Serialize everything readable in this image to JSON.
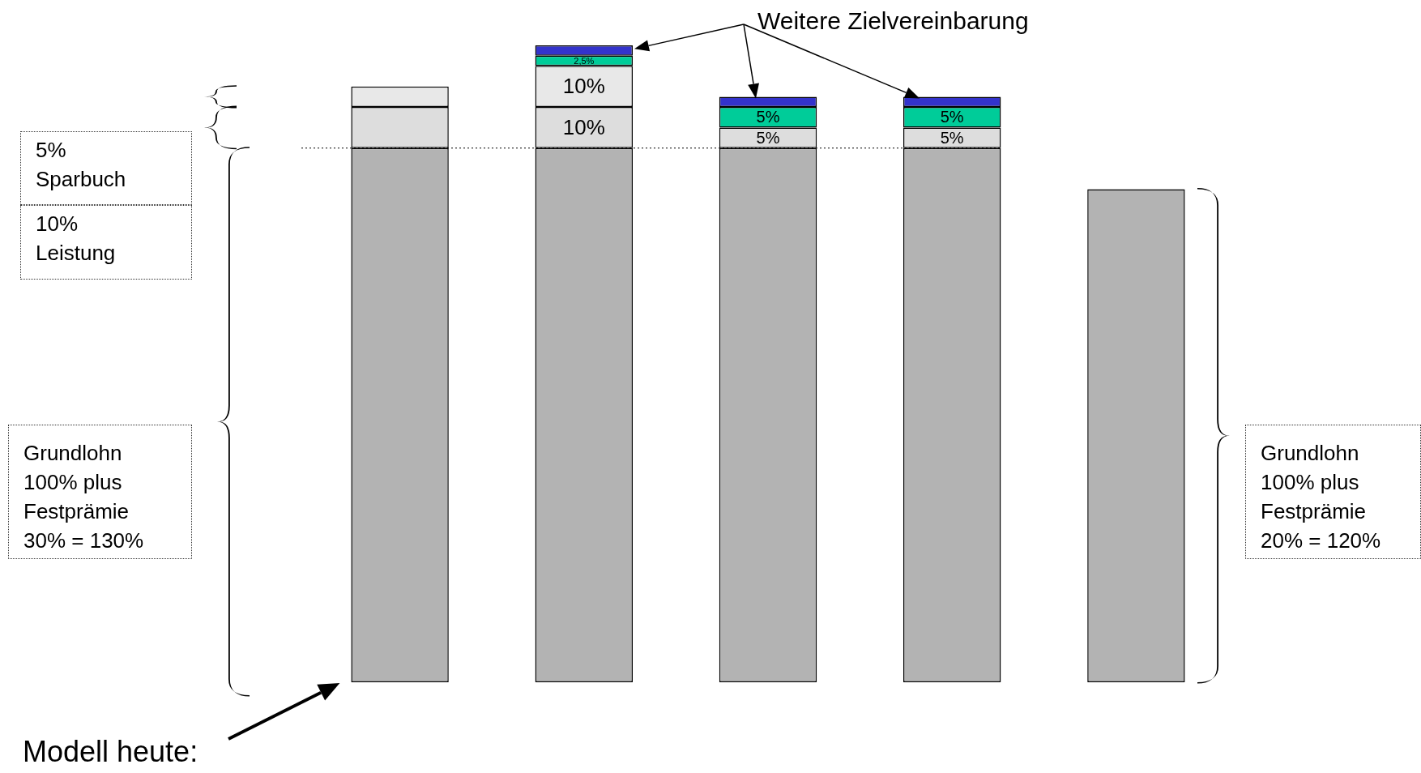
{
  "chart_data": {
    "type": "bar",
    "stacked": true,
    "legend": false,
    "tick_labels": false,
    "categories": [
      null,
      null,
      null,
      null,
      null
    ],
    "series": [
      {
        "color": "#b3b3b3",
        "values": [
          130,
          130,
          130,
          130,
          120
        ]
      },
      {
        "color": "#dddddd",
        "values": [
          10,
          10,
          5,
          5,
          null
        ],
        "value_labels": [
          null,
          "10%",
          "5%",
          "5%",
          null
        ]
      },
      {
        "color": "#e8e8e8",
        "values": [
          5,
          10,
          null,
          null,
          null
        ],
        "value_labels": [
          null,
          "10%",
          null,
          null,
          null
        ]
      },
      {
        "color": "#00cc99",
        "values": [
          null,
          2.5,
          5,
          5,
          null
        ],
        "value_labels": [
          null,
          "2,5%",
          "5%",
          "5%",
          null
        ]
      },
      {
        "color": "#3333cc",
        "values": [
          null,
          2.5,
          2.5,
          2.5,
          null
        ]
      }
    ],
    "ref_lines": [
      {
        "axis": "y",
        "value": 130,
        "line_style": "dotted",
        "color": "#000000"
      }
    ],
    "annotations": [
      "5%\nSparbuch",
      "10%\nLeistung",
      "Grundlohn\n100% plus\nFestprämie\n30% = 130%",
      "Grundlohn\n100% plus\nFestprämie\n20% = 120%",
      "Weitere Zielvereinbarung",
      "Modell heute:"
    ]
  }
}
